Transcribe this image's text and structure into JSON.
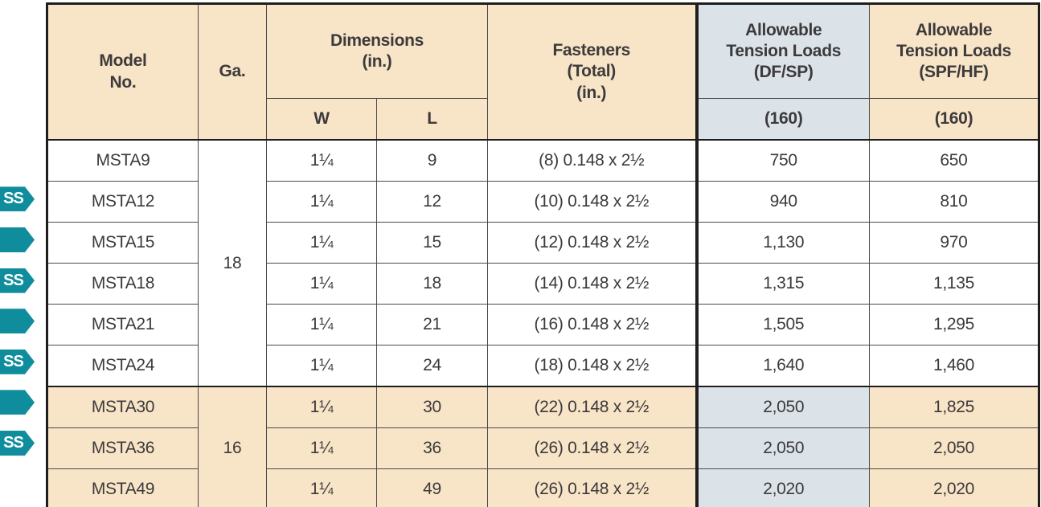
{
  "colors": {
    "header_beige": "#f8e4c7",
    "header_blue": "#dbe3e9",
    "accent_teal": "#0f8d9c",
    "border_dark": "#1f1d1e",
    "row_beige": "#f8e4c7"
  },
  "table": {
    "header": {
      "model_no": "Model\nNo.",
      "ga": "Ga.",
      "dimensions": "Dimensions\n(in.)",
      "w": "W",
      "l": "L",
      "fasteners": "Fasteners\n(Total)\n(in.)",
      "df_sp": "Allowable\nTension Loads\n(DF/SP)",
      "spf_hf": "Allowable\nTension Loads\n(SPF/HF)",
      "df_sp_160": "(160)",
      "spf_hf_160": "(160)"
    },
    "rows": [
      {
        "badge": "none",
        "model": "MSTA9",
        "ga": "18",
        "ga_rowspan": 6,
        "w": "1¼",
        "l": "9",
        "fasteners": "(8) 0.148 x 2½",
        "df_sp": "750",
        "spf_hf": "650",
        "highlight": false
      },
      {
        "badge": "ss",
        "model": "MSTA12",
        "ga": null,
        "w": "1¼",
        "l": "12",
        "fasteners": "(10) 0.148 x 2½",
        "df_sp": "940",
        "spf_hf": "810",
        "highlight": false
      },
      {
        "badge": "arrow",
        "model": "MSTA15",
        "ga": null,
        "w": "1¼",
        "l": "15",
        "fasteners": "(12) 0.148 x 2½",
        "df_sp": "1,130",
        "spf_hf": "970",
        "highlight": false
      },
      {
        "badge": "ss",
        "model": "MSTA18",
        "ga": null,
        "w": "1¼",
        "l": "18",
        "fasteners": "(14) 0.148 x 2½",
        "df_sp": "1,315",
        "spf_hf": "1,135",
        "highlight": false
      },
      {
        "badge": "arrow",
        "model": "MSTA21",
        "ga": null,
        "w": "1¼",
        "l": "21",
        "fasteners": "(16) 0.148 x 2½",
        "df_sp": "1,505",
        "spf_hf": "1,295",
        "highlight": false
      },
      {
        "badge": "ss",
        "model": "MSTA24",
        "ga": null,
        "w": "1¼",
        "l": "24",
        "fasteners": "(18) 0.148 x 2½",
        "df_sp": "1,640",
        "spf_hf": "1,460",
        "highlight": false
      },
      {
        "badge": "arrow",
        "model": "MSTA30",
        "ga": "16",
        "ga_rowspan": 3,
        "w": "1¼",
        "l": "30",
        "fasteners": "(22) 0.148 x 2½",
        "df_sp": "2,050",
        "spf_hf": "1,825",
        "highlight": true
      },
      {
        "badge": "ss",
        "model": "MSTA36",
        "ga": null,
        "w": "1¼",
        "l": "36",
        "fasteners": "(26) 0.148 x 2½",
        "df_sp": "2,050",
        "spf_hf": "2,050",
        "highlight": true
      },
      {
        "badge": "none",
        "model": "MSTA49",
        "ga": null,
        "w": "1¼",
        "l": "49",
        "fasteners": "(26) 0.148 x 2½",
        "df_sp": "2,020",
        "spf_hf": "2,020",
        "highlight": true
      }
    ],
    "badge_ss_label": "SS"
  }
}
